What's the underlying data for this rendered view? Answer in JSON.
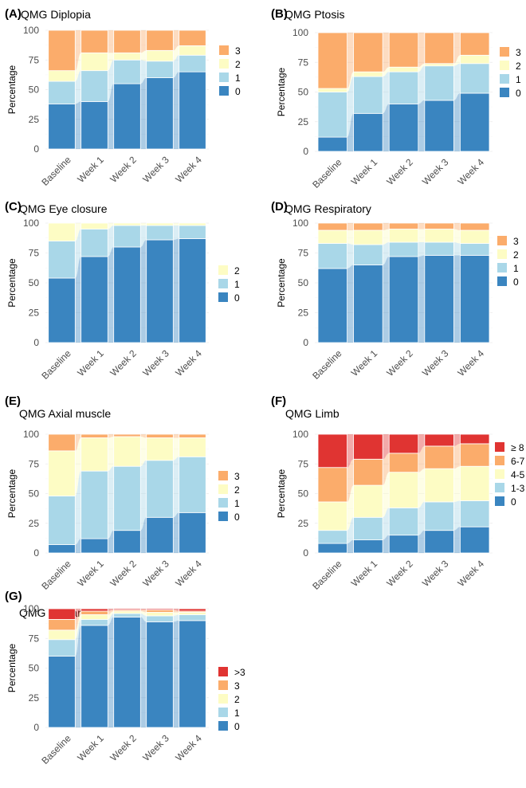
{
  "colors": {
    "s0": "#3a85c0",
    "s1": "#a9d7e8",
    "s2": "#fdfcc4",
    "s3": "#fbac6b",
    "s4": "#e03432",
    "grid": "#ebebeb",
    "text": "#4d4d4d"
  },
  "axis": {
    "ylabel": "Percentage",
    "yticks": [
      "0",
      "25",
      "50",
      "75",
      "100"
    ],
    "categories": [
      "Baseline",
      "Week 1",
      "Week 2",
      "Week 3",
      "Week 4"
    ]
  },
  "chart_data": [
    {
      "tag": "(A)",
      "title": "QMG Diplopia",
      "type": "bar",
      "categories": [
        "Baseline",
        "Week 1",
        "Week 2",
        "Week 3",
        "Week 4"
      ],
      "ylim": [
        0,
        100
      ],
      "series": [
        {
          "name": "0",
          "values": [
            38,
            40,
            55,
            60,
            65
          ]
        },
        {
          "name": "1",
          "values": [
            19,
            26,
            20,
            14,
            14
          ]
        },
        {
          "name": "2",
          "values": [
            9,
            15,
            6,
            9,
            8
          ]
        },
        {
          "name": "3",
          "values": [
            34,
            19,
            19,
            17,
            13
          ]
        }
      ],
      "legend": [
        {
          "label": "3",
          "color": "s3"
        },
        {
          "label": "2",
          "color": "s2"
        },
        {
          "label": "1",
          "color": "s1"
        },
        {
          "label": "0",
          "color": "s0"
        }
      ]
    },
    {
      "tag": "(B)",
      "title": "QMG Ptosis",
      "type": "bar",
      "categories": [
        "Baseline",
        "Week 1",
        "Week 2",
        "Week 3",
        "Week 4"
      ],
      "ylim": [
        0,
        100
      ],
      "series": [
        {
          "name": "0",
          "values": [
            12,
            32,
            40,
            43,
            49
          ]
        },
        {
          "name": "1",
          "values": [
            38,
            31,
            27,
            29,
            25
          ]
        },
        {
          "name": "2",
          "values": [
            3,
            4,
            4,
            2,
            7
          ]
        },
        {
          "name": "3",
          "values": [
            47,
            33,
            29,
            26,
            19
          ]
        }
      ],
      "legend": [
        {
          "label": "3",
          "color": "s3"
        },
        {
          "label": "2",
          "color": "s2"
        },
        {
          "label": "1",
          "color": "s1"
        },
        {
          "label": "0",
          "color": "s0"
        }
      ]
    },
    {
      "tag": "(C)",
      "title": "QMG Eye closure",
      "type": "bar",
      "categories": [
        "Baseline",
        "Week 1",
        "Week 2",
        "Week 3",
        "Week 4"
      ],
      "ylim": [
        0,
        100
      ],
      "series": [
        {
          "name": "0",
          "values": [
            54,
            72,
            80,
            86,
            87
          ]
        },
        {
          "name": "1",
          "values": [
            31,
            23,
            18,
            12,
            11
          ]
        },
        {
          "name": "2",
          "values": [
            15,
            5,
            2,
            2,
            2
          ]
        }
      ],
      "legend": [
        {
          "label": "2",
          "color": "s2"
        },
        {
          "label": "1",
          "color": "s1"
        },
        {
          "label": "0",
          "color": "s0"
        }
      ]
    },
    {
      "tag": "(D)",
      "title": "QMG Respiratory",
      "type": "bar",
      "categories": [
        "Baseline",
        "Week 1",
        "Week 2",
        "Week 3",
        "Week 4"
      ],
      "ylim": [
        0,
        100
      ],
      "series": [
        {
          "name": "0",
          "values": [
            62,
            65,
            72,
            73,
            73
          ]
        },
        {
          "name": "1",
          "values": [
            21,
            17,
            12,
            11,
            10
          ]
        },
        {
          "name": "2",
          "values": [
            11,
            12,
            11,
            11,
            11
          ]
        },
        {
          "name": "3",
          "values": [
            6,
            6,
            5,
            5,
            6
          ]
        }
      ],
      "legend": [
        {
          "label": "3",
          "color": "s3"
        },
        {
          "label": "2",
          "color": "s2"
        },
        {
          "label": "1",
          "color": "s1"
        },
        {
          "label": "0",
          "color": "s0"
        }
      ]
    },
    {
      "tag": "(E)",
      "title": "QMG Axial muscle",
      "type": "bar",
      "categories": [
        "Baseline",
        "Week 1",
        "Week 2",
        "Week 3",
        "Week 4"
      ],
      "ylim": [
        0,
        100
      ],
      "series": [
        {
          "name": "0",
          "values": [
            7,
            12,
            19,
            30,
            34
          ]
        },
        {
          "name": "1",
          "values": [
            41,
            57,
            54,
            48,
            47
          ]
        },
        {
          "name": "2",
          "values": [
            38,
            28,
            25,
            19,
            16
          ]
        },
        {
          "name": "3",
          "values": [
            14,
            3,
            2,
            3,
            3
          ]
        }
      ],
      "legend": [
        {
          "label": "3",
          "color": "s3"
        },
        {
          "label": "2",
          "color": "s2"
        },
        {
          "label": "1",
          "color": "s1"
        },
        {
          "label": "0",
          "color": "s0"
        }
      ]
    },
    {
      "tag": "(F)",
      "title": "QMG Limb",
      "type": "bar",
      "categories": [
        "Baseline",
        "Week 1",
        "Week 2",
        "Week 3",
        "Week 4"
      ],
      "ylim": [
        0,
        100
      ],
      "series": [
        {
          "name": "0",
          "values": [
            8,
            11,
            15,
            19,
            22
          ]
        },
        {
          "name": "1-3",
          "values": [
            11,
            19,
            23,
            24,
            22
          ]
        },
        {
          "name": "4-5",
          "values": [
            24,
            27,
            30,
            28,
            29
          ]
        },
        {
          "name": "6-7",
          "values": [
            29,
            22,
            16,
            19,
            19
          ]
        },
        {
          "name": "≥ 8",
          "values": [
            28,
            21,
            16,
            10,
            8
          ]
        }
      ],
      "legend": [
        {
          "label": "≥ 8",
          "color": "s4"
        },
        {
          "label": "6-7",
          "color": "s3"
        },
        {
          "label": "4-5",
          "color": "s2"
        },
        {
          "label": "1-3",
          "color": "s1"
        },
        {
          "label": "0",
          "color": "s0"
        }
      ]
    },
    {
      "tag": "(G)",
      "title": "QMG Bulbar",
      "type": "bar",
      "categories": [
        "Baseline",
        "Week 1",
        "Week 2",
        "Week 3",
        "Week 4"
      ],
      "ylim": [
        0,
        100
      ],
      "series": [
        {
          "name": "0",
          "values": [
            60,
            86,
            93,
            89,
            90
          ]
        },
        {
          "name": "1",
          "values": [
            14,
            5,
            3,
            5,
            5
          ]
        },
        {
          "name": "2",
          "values": [
            8,
            4,
            2,
            3,
            2
          ]
        },
        {
          "name": "3",
          "values": [
            9,
            3,
            1,
            2,
            1
          ]
        },
        {
          "name": ">3",
          "values": [
            9,
            2,
            1,
            1,
            2
          ]
        }
      ],
      "legend": [
        {
          "label": ">3",
          "color": "s4"
        },
        {
          "label": "3",
          "color": "s3"
        },
        {
          "label": "2",
          "color": "s2"
        },
        {
          "label": "1",
          "color": "s1"
        },
        {
          "label": "0",
          "color": "s0"
        }
      ]
    }
  ]
}
